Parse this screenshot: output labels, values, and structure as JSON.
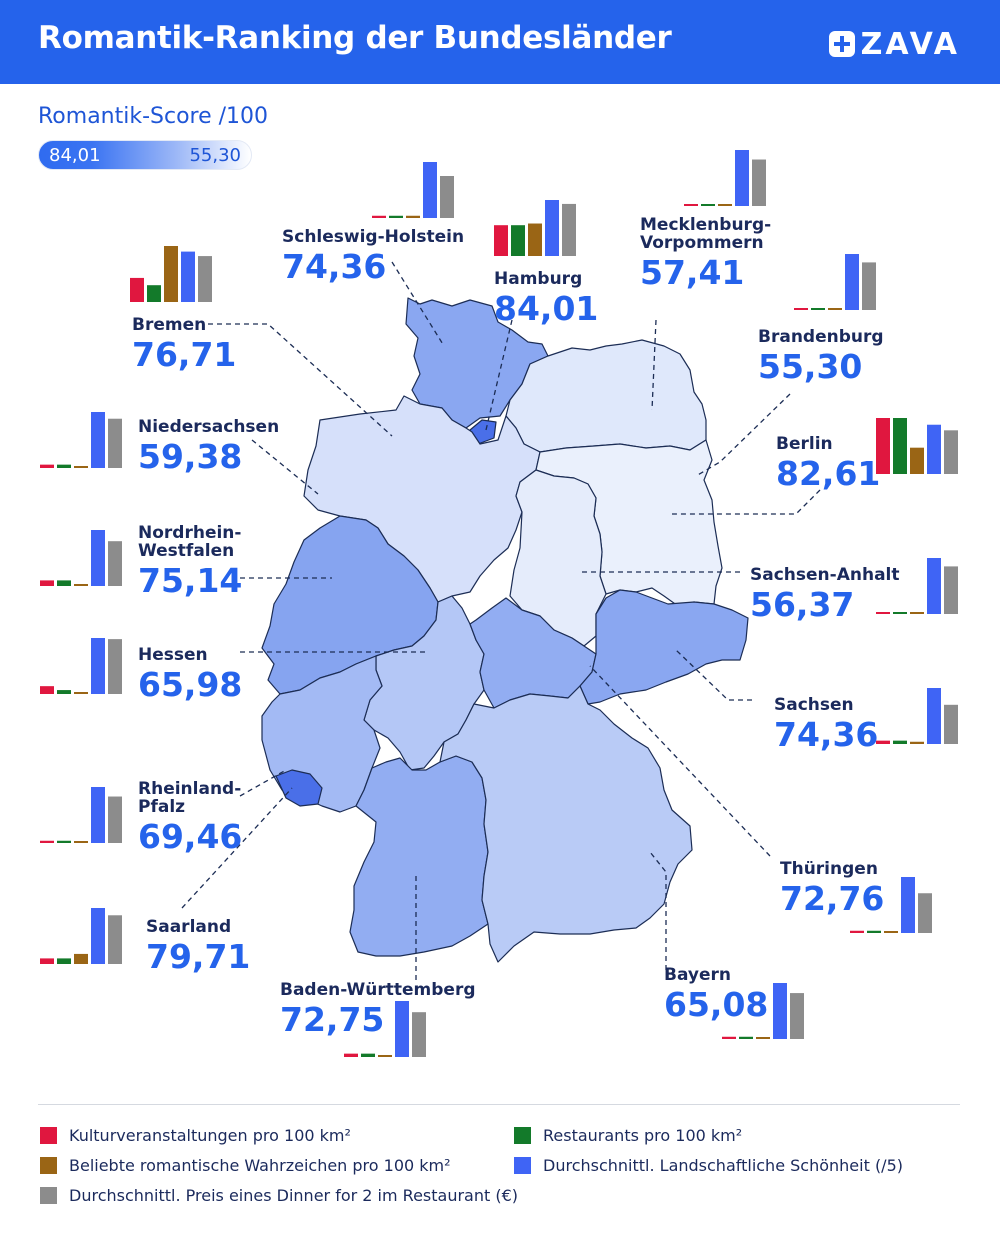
{
  "header": {
    "title": "Romantik-Ranking der Bundesländer",
    "logo_text": "ZAVA"
  },
  "scale": {
    "title": "Romantik-Score /100",
    "max_label": "84,01",
    "min_label": "55,30"
  },
  "colors": {
    "header_bg": "#2563eb",
    "score_text": "#2563eb",
    "kultur": "#e0173f",
    "restaurants": "#137a2a",
    "wahrzeichen": "#9a6515",
    "landschaft": "#3f64f5",
    "preis": "#8c8c8c",
    "state_fill_scale": [
      "#eaf0fc",
      "#5a82eb"
    ]
  },
  "legend": [
    {
      "key": "kultur",
      "label": "Kulturveranstaltungen pro 100 km²"
    },
    {
      "key": "restaurants",
      "label": "Restaurants pro 100 km²"
    },
    {
      "key": "wahrzeichen",
      "label": "Beliebte romantische Wahrzeichen pro 100 km²"
    },
    {
      "key": "landschaft",
      "label": "Durchschnittl. Landschaftliche Schönheit (/5)"
    },
    {
      "key": "preis",
      "label": "Durchschnittl. Preis eines Dinner for 2 im Restaurant (€)"
    }
  ],
  "chart_data": {
    "type": "bar",
    "title": "Romantik-Ranking der Bundesländer",
    "score_label": "Romantik-Score /100",
    "series": [
      {
        "name": "Kulturveranstaltungen pro 100 km²",
        "key": "kultur"
      },
      {
        "name": "Restaurants pro 100 km²",
        "key": "restaurants"
      },
      {
        "name": "Beliebte romantische Wahrzeichen pro 100 km²",
        "key": "wahrzeichen"
      },
      {
        "name": "Durchschnittl. Landschaftliche Schönheit (/5)",
        "key": "landschaft"
      },
      {
        "name": "Durchschnittl. Preis eines Dinner for 2 im Restaurant (€)",
        "key": "preis"
      }
    ],
    "states": [
      {
        "id": "sh",
        "name": "Schleswig-Holstein",
        "score": "74,36",
        "score_value": 74.36,
        "bars": [
          0.04,
          0.04,
          0.04,
          1.0,
          0.75
        ]
      },
      {
        "id": "hh",
        "name": "Hamburg",
        "score": "84,01",
        "score_value": 84.01,
        "bars": [
          0.55,
          0.55,
          0.58,
          1.0,
          0.93
        ]
      },
      {
        "id": "mv",
        "name": "Mecklenburg-\nVorpommern",
        "score": "57,41",
        "score_value": 57.41,
        "bars": [
          0.03,
          0.03,
          0.03,
          1.0,
          0.83
        ]
      },
      {
        "id": "hb",
        "name": "Bremen",
        "score": "76,71",
        "score_value": 76.71,
        "bars": [
          0.43,
          0.3,
          1.0,
          0.9,
          0.82
        ]
      },
      {
        "id": "bb",
        "name": "Brandenburg",
        "score": "55,30",
        "score_value": 55.3,
        "bars": [
          0.03,
          0.03,
          0.03,
          1.0,
          0.85
        ]
      },
      {
        "id": "ni",
        "name": "Niedersachsen",
        "score": "59,38",
        "score_value": 59.38,
        "bars": [
          0.06,
          0.06,
          0.03,
          1.0,
          0.88
        ]
      },
      {
        "id": "be",
        "name": "Berlin",
        "score": "82,61",
        "score_value": 82.61,
        "bars": [
          1.0,
          1.0,
          0.47,
          0.88,
          0.78
        ]
      },
      {
        "id": "nw",
        "name": "Nordrhein-\nWestfalen",
        "score": "75,14",
        "score_value": 75.14,
        "bars": [
          0.1,
          0.1,
          0.03,
          1.0,
          0.8
        ]
      },
      {
        "id": "st",
        "name": "Sachsen-Anhalt",
        "score": "56,37",
        "score_value": 56.37,
        "bars": [
          0.03,
          0.03,
          0.03,
          1.0,
          0.85
        ]
      },
      {
        "id": "he",
        "name": "Hessen",
        "score": "65,98",
        "score_value": 65.98,
        "bars": [
          0.14,
          0.07,
          0.03,
          1.0,
          0.98
        ]
      },
      {
        "id": "sn",
        "name": "Sachsen",
        "score": "74,36",
        "score_value": 74.36,
        "bars": [
          0.06,
          0.06,
          0.04,
          1.0,
          0.7
        ]
      },
      {
        "id": "rp",
        "name": "Rheinland-\nPfalz",
        "score": "69,46",
        "score_value": 69.46,
        "bars": [
          0.04,
          0.04,
          0.03,
          1.0,
          0.83
        ]
      },
      {
        "id": "th",
        "name": "Thüringen",
        "score": "72,76",
        "score_value": 72.76,
        "bars": [
          0.04,
          0.04,
          0.03,
          1.0,
          0.71
        ]
      },
      {
        "id": "sl",
        "name": "Saarland",
        "score": "79,71",
        "score_value": 79.71,
        "bars": [
          0.1,
          0.1,
          0.18,
          1.0,
          0.87
        ]
      },
      {
        "id": "bw",
        "name": "Baden-Württemberg",
        "score": "72,75",
        "score_value": 72.75,
        "bars": [
          0.06,
          0.06,
          0.03,
          1.0,
          0.8
        ]
      },
      {
        "id": "by",
        "name": "Bayern",
        "score": "65,08",
        "score_value": 65.08,
        "bars": [
          0.04,
          0.04,
          0.03,
          1.0,
          0.82
        ]
      }
    ]
  }
}
